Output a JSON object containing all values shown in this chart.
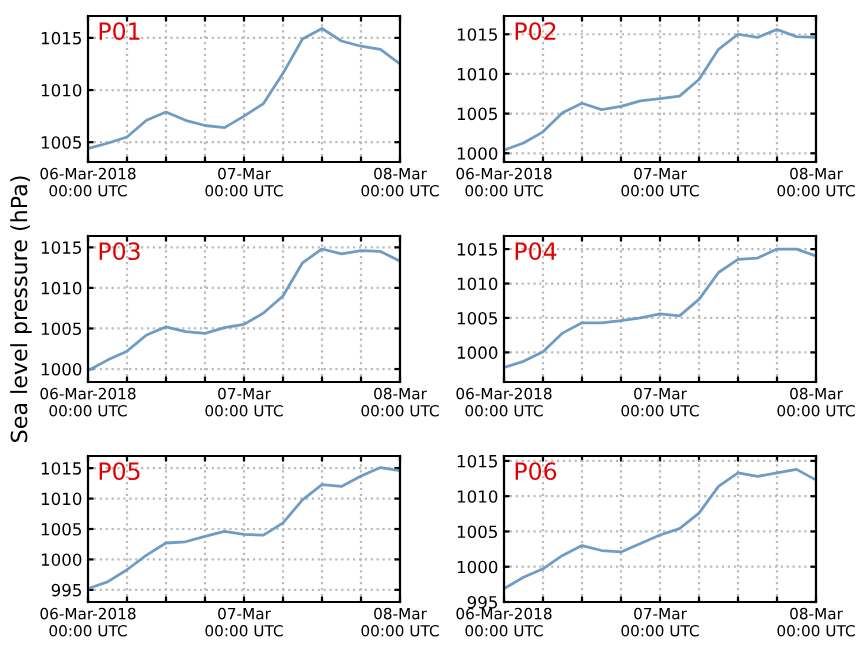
{
  "chart_data": [
    {
      "type": "line",
      "title": "P01",
      "x": [
        "2018-03-06T00:00",
        "2018-03-06T03:00",
        "2018-03-06T06:00",
        "2018-03-06T09:00",
        "2018-03-06T12:00",
        "2018-03-06T15:00",
        "2018-03-06T18:00",
        "2018-03-06T21:00",
        "2018-03-07T00:00",
        "2018-03-07T03:00",
        "2018-03-07T06:00",
        "2018-03-07T09:00",
        "2018-03-07T12:00",
        "2018-03-07T15:00",
        "2018-03-07T18:00",
        "2018-03-07T21:00",
        "2018-03-08T00:00"
      ],
      "series": [
        {
          "color": "#6f9cc4",
          "values": [
            1004.4,
            1004.9,
            1005.5,
            1007.1,
            1007.9,
            1007.1,
            1006.6,
            1006.4,
            1007.5,
            1008.7,
            1011.6,
            1014.9,
            1015.9,
            1014.7,
            1014.2,
            1013.9,
            1012.5
          ]
        }
      ],
      "xlim": [
        "2018-03-06T00:00",
        "2018-03-08T00:00"
      ],
      "xticks": [
        {
          "value": "2018-03-06T00:00",
          "label": "06-Mar-2018\n00:00 UTC"
        },
        {
          "value": "2018-03-06T06:00",
          "label": null
        },
        {
          "value": "2018-03-06T12:00",
          "label": null
        },
        {
          "value": "2018-03-06T18:00",
          "label": null
        },
        {
          "value": "2018-03-07T00:00",
          "label": "07-Mar\n00:00 UTC"
        },
        {
          "value": "2018-03-07T06:00",
          "label": null
        },
        {
          "value": "2018-03-07T12:00",
          "label": null
        },
        {
          "value": "2018-03-07T18:00",
          "label": null
        },
        {
          "value": "2018-03-08T00:00",
          "label": "08-Mar\n00:00 UTC"
        }
      ],
      "ylim": [
        1003.1,
        1017.1
      ],
      "yticks": [
        1005,
        1010,
        1015
      ],
      "grid": true
    },
    {
      "type": "line",
      "title": "P02",
      "x": [
        "2018-03-06T00:00",
        "2018-03-06T03:00",
        "2018-03-06T06:00",
        "2018-03-06T09:00",
        "2018-03-06T12:00",
        "2018-03-06T15:00",
        "2018-03-06T18:00",
        "2018-03-06T21:00",
        "2018-03-07T00:00",
        "2018-03-07T03:00",
        "2018-03-07T06:00",
        "2018-03-07T09:00",
        "2018-03-07T12:00",
        "2018-03-07T15:00",
        "2018-03-07T18:00",
        "2018-03-07T21:00",
        "2018-03-08T00:00"
      ],
      "series": [
        {
          "color": "#6f9cc4",
          "values": [
            1000.4,
            1001.3,
            1002.7,
            1005.1,
            1006.3,
            1005.5,
            1005.9,
            1006.6,
            1006.9,
            1007.2,
            1009.3,
            1013.1,
            1015.0,
            1014.6,
            1015.6,
            1014.7,
            1014.6
          ]
        }
      ],
      "xlim": [
        "2018-03-06T00:00",
        "2018-03-08T00:00"
      ],
      "xticks": [
        {
          "value": "2018-03-06T00:00",
          "label": "06-Mar-2018\n00:00 UTC"
        },
        {
          "value": "2018-03-06T06:00",
          "label": null
        },
        {
          "value": "2018-03-06T12:00",
          "label": null
        },
        {
          "value": "2018-03-06T18:00",
          "label": null
        },
        {
          "value": "2018-03-07T00:00",
          "label": "07-Mar\n00:00 UTC"
        },
        {
          "value": "2018-03-07T06:00",
          "label": null
        },
        {
          "value": "2018-03-07T12:00",
          "label": null
        },
        {
          "value": "2018-03-07T18:00",
          "label": null
        },
        {
          "value": "2018-03-08T00:00",
          "label": "08-Mar\n00:00 UTC"
        }
      ],
      "ylim": [
        998.9,
        1017.3
      ],
      "yticks": [
        1000,
        1005,
        1010,
        1015
      ],
      "grid": true
    },
    {
      "type": "line",
      "title": "P03",
      "ylabel": "Sea level pressure (hPa)",
      "x": [
        "2018-03-06T00:00",
        "2018-03-06T03:00",
        "2018-03-06T06:00",
        "2018-03-06T09:00",
        "2018-03-06T12:00",
        "2018-03-06T15:00",
        "2018-03-06T18:00",
        "2018-03-06T21:00",
        "2018-03-07T00:00",
        "2018-03-07T03:00",
        "2018-03-07T06:00",
        "2018-03-07T09:00",
        "2018-03-07T12:00",
        "2018-03-07T15:00",
        "2018-03-07T18:00",
        "2018-03-07T21:00",
        "2018-03-08T00:00"
      ],
      "series": [
        {
          "color": "#6f9cc4",
          "values": [
            999.8,
            1001.1,
            1002.2,
            1004.2,
            1005.2,
            1004.6,
            1004.4,
            1005.1,
            1005.5,
            1006.9,
            1009.0,
            1013.1,
            1014.8,
            1014.2,
            1014.6,
            1014.5,
            1013.3
          ]
        }
      ],
      "xlim": [
        "2018-03-06T00:00",
        "2018-03-08T00:00"
      ],
      "xticks": [
        {
          "value": "2018-03-06T00:00",
          "label": "06-Mar-2018\n00:00 UTC"
        },
        {
          "value": "2018-03-06T06:00",
          "label": null
        },
        {
          "value": "2018-03-06T12:00",
          "label": null
        },
        {
          "value": "2018-03-06T18:00",
          "label": null
        },
        {
          "value": "2018-03-07T00:00",
          "label": "07-Mar\n00:00 UTC"
        },
        {
          "value": "2018-03-07T06:00",
          "label": null
        },
        {
          "value": "2018-03-07T12:00",
          "label": null
        },
        {
          "value": "2018-03-07T18:00",
          "label": null
        },
        {
          "value": "2018-03-08T00:00",
          "label": "08-Mar\n00:00 UTC"
        }
      ],
      "ylim": [
        998.4,
        1016.4
      ],
      "yticks": [
        1000,
        1005,
        1010,
        1015
      ],
      "grid": true
    },
    {
      "type": "line",
      "title": "P04",
      "x": [
        "2018-03-06T00:00",
        "2018-03-06T03:00",
        "2018-03-06T06:00",
        "2018-03-06T09:00",
        "2018-03-06T12:00",
        "2018-03-06T15:00",
        "2018-03-06T18:00",
        "2018-03-06T21:00",
        "2018-03-07T00:00",
        "2018-03-07T03:00",
        "2018-03-07T06:00",
        "2018-03-07T09:00",
        "2018-03-07T12:00",
        "2018-03-07T15:00",
        "2018-03-07T18:00",
        "2018-03-07T21:00",
        "2018-03-08T00:00"
      ],
      "series": [
        {
          "color": "#6f9cc4",
          "values": [
            997.8,
            998.7,
            1000.1,
            1002.8,
            1004.3,
            1004.3,
            1004.6,
            1005.0,
            1005.6,
            1005.3,
            1007.7,
            1011.6,
            1013.5,
            1013.7,
            1015.0,
            1015.0,
            1014.0
          ]
        }
      ],
      "xlim": [
        "2018-03-06T00:00",
        "2018-03-08T00:00"
      ],
      "xticks": [
        {
          "value": "2018-03-06T00:00",
          "label": "06-Mar-2018\n00:00 UTC"
        },
        {
          "value": "2018-03-06T06:00",
          "label": null
        },
        {
          "value": "2018-03-06T12:00",
          "label": null
        },
        {
          "value": "2018-03-06T18:00",
          "label": null
        },
        {
          "value": "2018-03-07T00:00",
          "label": "07-Mar\n00:00 UTC"
        },
        {
          "value": "2018-03-07T06:00",
          "label": null
        },
        {
          "value": "2018-03-07T12:00",
          "label": null
        },
        {
          "value": "2018-03-07T18:00",
          "label": null
        },
        {
          "value": "2018-03-08T00:00",
          "label": "08-Mar\n00:00 UTC"
        }
      ],
      "ylim": [
        995.7,
        1016.9
      ],
      "yticks": [
        1000,
        1005,
        1010,
        1015
      ],
      "grid": true
    },
    {
      "type": "line",
      "title": "P05",
      "x": [
        "2018-03-06T00:00",
        "2018-03-06T03:00",
        "2018-03-06T06:00",
        "2018-03-06T09:00",
        "2018-03-06T12:00",
        "2018-03-06T15:00",
        "2018-03-06T18:00",
        "2018-03-06T21:00",
        "2018-03-07T00:00",
        "2018-03-07T03:00",
        "2018-03-07T06:00",
        "2018-03-07T09:00",
        "2018-03-07T12:00",
        "2018-03-07T15:00",
        "2018-03-07T18:00",
        "2018-03-07T21:00",
        "2018-03-08T00:00"
      ],
      "series": [
        {
          "color": "#6f9cc4",
          "values": [
            995.2,
            996.3,
            998.3,
            1000.7,
            1002.7,
            1002.9,
            1003.8,
            1004.6,
            1004.1,
            1004.0,
            1006.0,
            1009.8,
            1012.3,
            1012.0,
            1013.7,
            1015.1,
            1014.6
          ]
        }
      ],
      "xlim": [
        "2018-03-06T00:00",
        "2018-03-08T00:00"
      ],
      "xticks": [
        {
          "value": "2018-03-06T00:00",
          "label": "06-Mar-2018\n00:00 UTC"
        },
        {
          "value": "2018-03-06T06:00",
          "label": null
        },
        {
          "value": "2018-03-06T12:00",
          "label": null
        },
        {
          "value": "2018-03-06T18:00",
          "label": null
        },
        {
          "value": "2018-03-07T00:00",
          "label": "07-Mar\n00:00 UTC"
        },
        {
          "value": "2018-03-07T06:00",
          "label": null
        },
        {
          "value": "2018-03-07T12:00",
          "label": null
        },
        {
          "value": "2018-03-07T18:00",
          "label": null
        },
        {
          "value": "2018-03-08T00:00",
          "label": "08-Mar\n00:00 UTC"
        }
      ],
      "ylim": [
        993.0,
        1017.0
      ],
      "yticks": [
        995,
        1000,
        1005,
        1010,
        1015
      ],
      "grid": true
    },
    {
      "type": "line",
      "title": "P06",
      "x": [
        "2018-03-06T00:00",
        "2018-03-06T03:00",
        "2018-03-06T06:00",
        "2018-03-06T09:00",
        "2018-03-06T12:00",
        "2018-03-06T15:00",
        "2018-03-06T18:00",
        "2018-03-06T21:00",
        "2018-03-07T00:00",
        "2018-03-07T03:00",
        "2018-03-07T06:00",
        "2018-03-07T09:00",
        "2018-03-07T12:00",
        "2018-03-07T15:00",
        "2018-03-07T18:00",
        "2018-03-07T21:00",
        "2018-03-08T00:00"
      ],
      "series": [
        {
          "color": "#6f9cc4",
          "values": [
            996.9,
            998.5,
            999.7,
            1001.6,
            1003.0,
            1002.3,
            1002.1,
            1003.3,
            1004.5,
            1005.4,
            1007.6,
            1011.4,
            1013.3,
            1012.8,
            1013.3,
            1013.8,
            1012.3
          ]
        }
      ],
      "xlim": [
        "2018-03-06T00:00",
        "2018-03-08T00:00"
      ],
      "xticks": [
        {
          "value": "2018-03-06T00:00",
          "label": "06-Mar-2018\n00:00 UTC"
        },
        {
          "value": "2018-03-06T06:00",
          "label": null
        },
        {
          "value": "2018-03-06T12:00",
          "label": null
        },
        {
          "value": "2018-03-06T18:00",
          "label": null
        },
        {
          "value": "2018-03-07T00:00",
          "label": "07-Mar\n00:00 UTC"
        },
        {
          "value": "2018-03-07T06:00",
          "label": null
        },
        {
          "value": "2018-03-07T12:00",
          "label": null
        },
        {
          "value": "2018-03-07T18:00",
          "label": null
        },
        {
          "value": "2018-03-08T00:00",
          "label": "08-Mar\n00:00 UTC"
        }
      ],
      "ylim": [
        995.0,
        1015.7
      ],
      "yticks": [
        995,
        1000,
        1005,
        1010,
        1015
      ],
      "grid": true
    }
  ]
}
